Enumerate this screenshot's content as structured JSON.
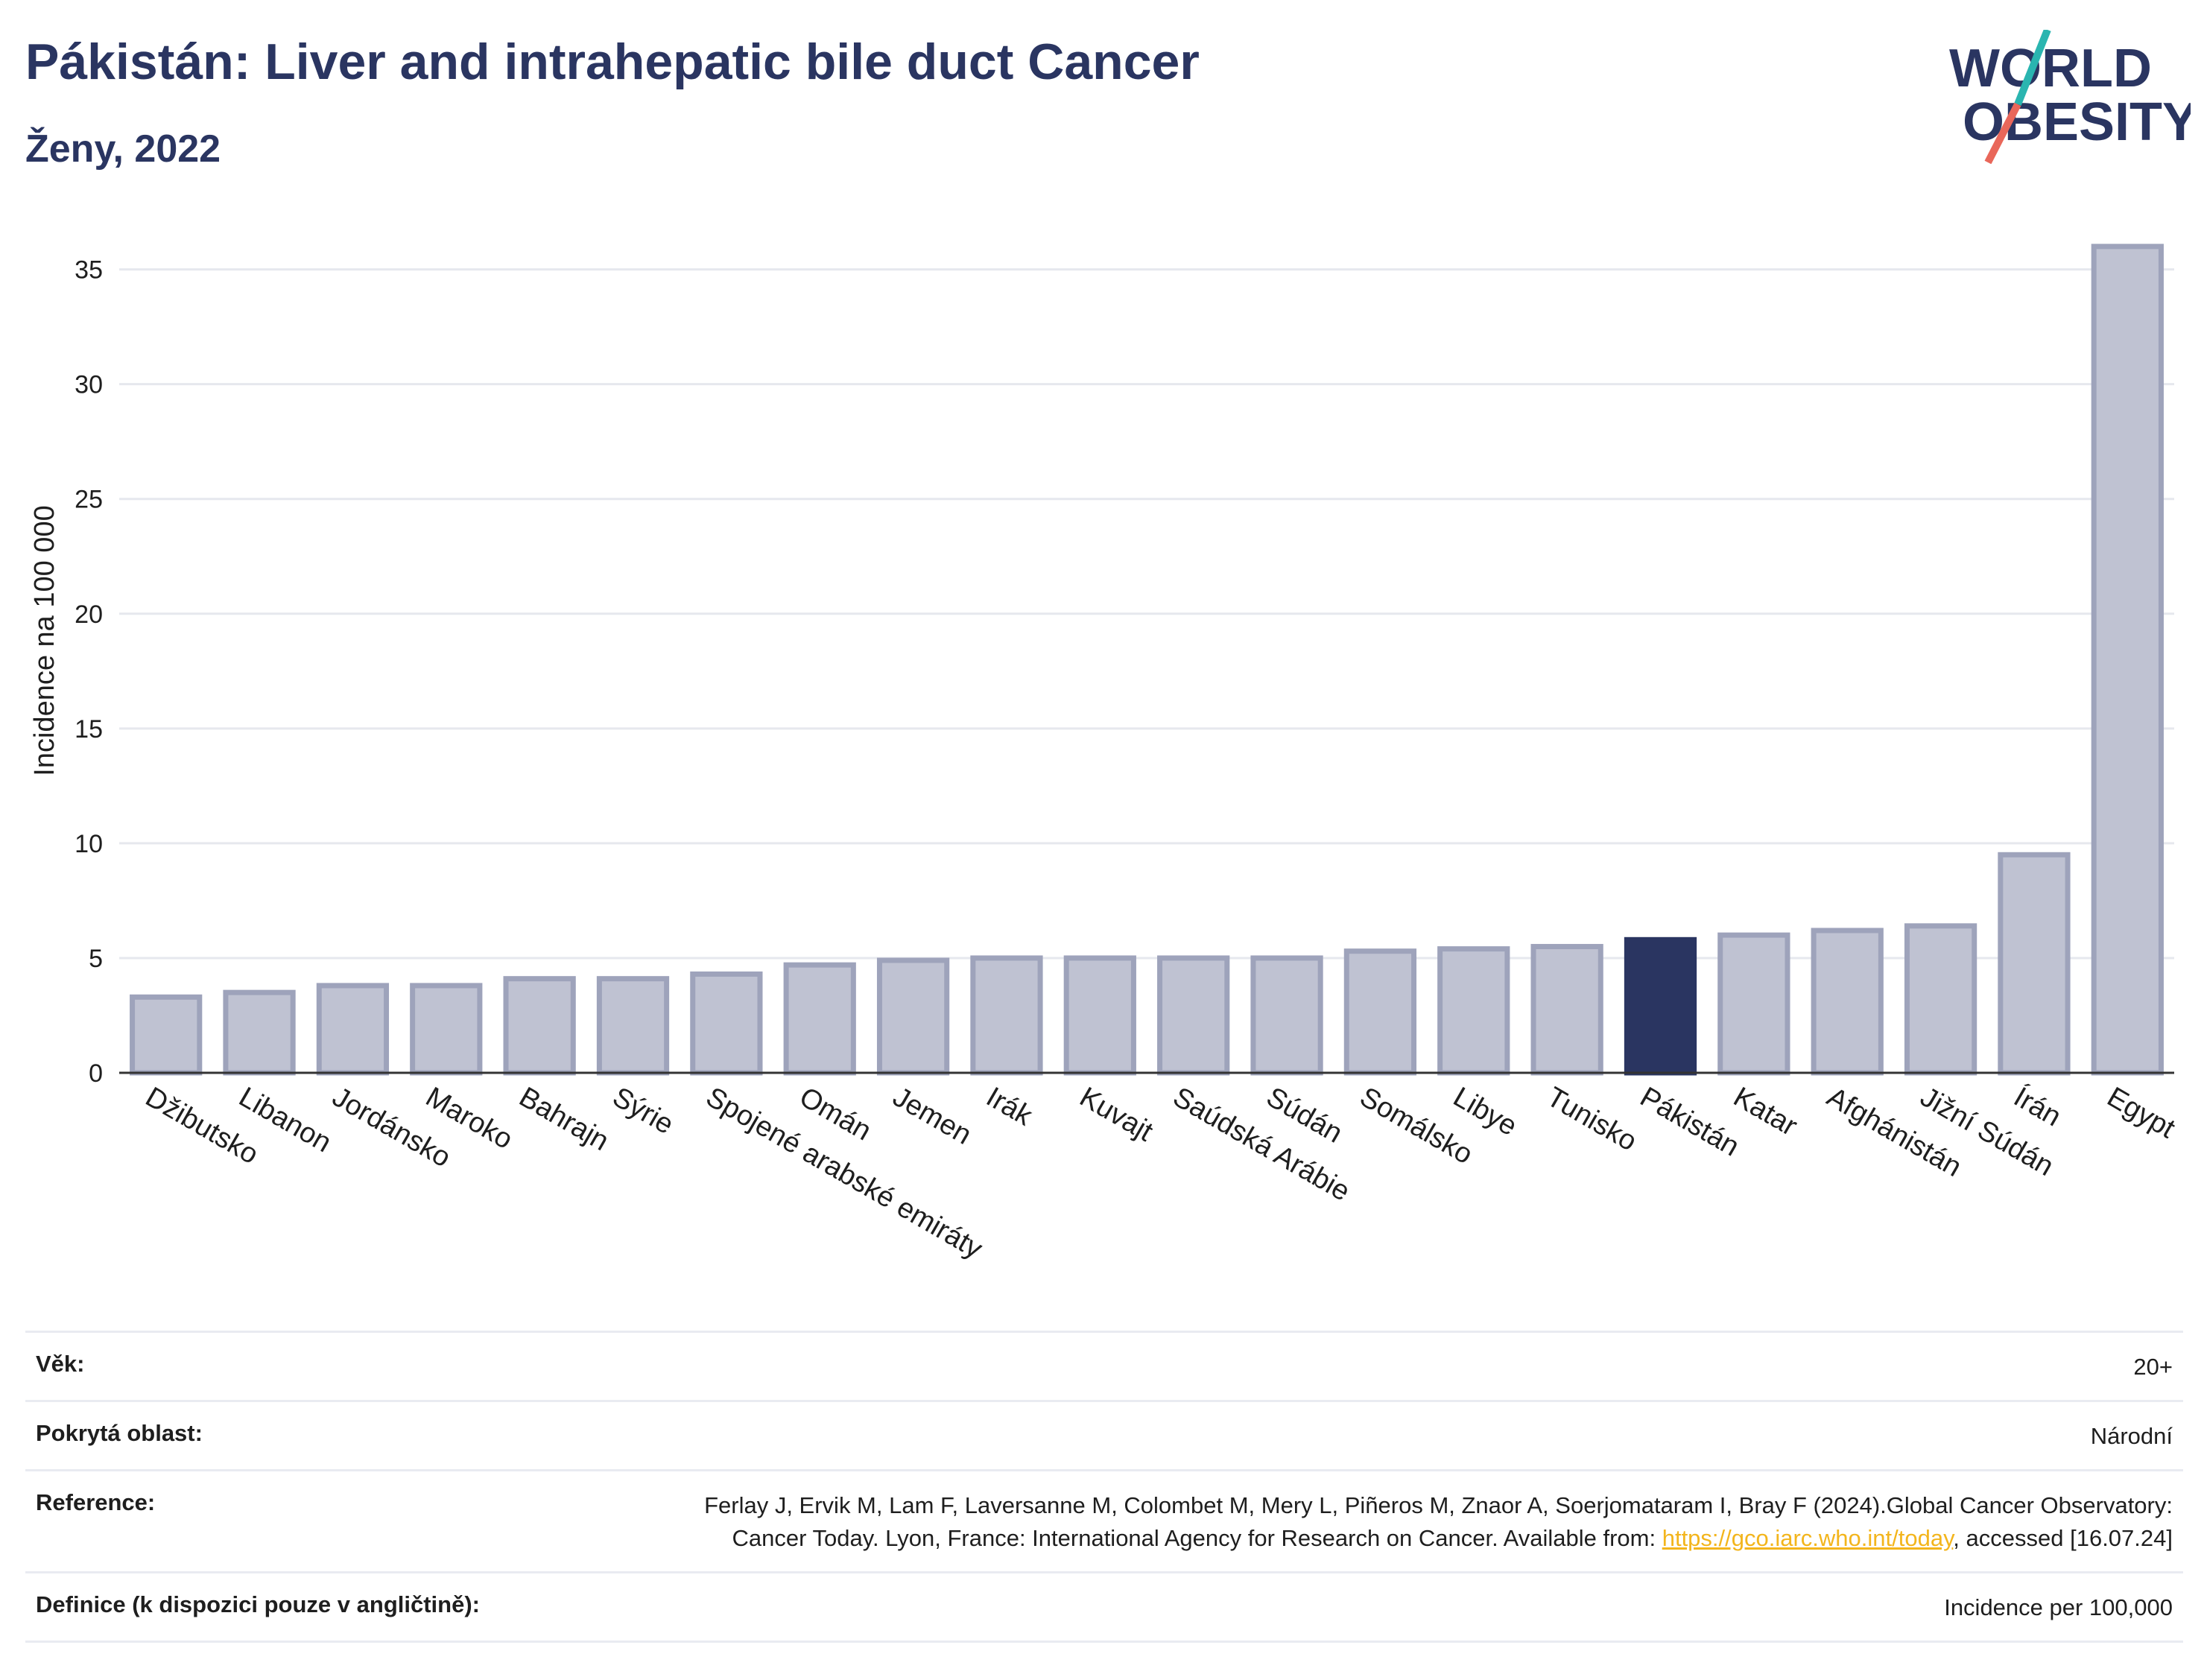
{
  "header": {
    "title": "Pákistán: Liver and intrahepatic bile duct Cancer",
    "subtitle": "Ženy, 2022"
  },
  "logo": {
    "line1": "WORLD",
    "line2": "OBESITY",
    "text_color": "#2a3561",
    "slash_colors": [
      "#2ab5b0",
      "#e9675a"
    ]
  },
  "colors": {
    "bar_default": "#bfc2d2",
    "bar_stroke": "#9ea3bb",
    "bar_highlight": "#2a3561"
  },
  "chart_data": {
    "type": "bar",
    "title": "",
    "xlabel": "",
    "ylabel": "Incidence na 100 000",
    "ylim": [
      0,
      37
    ],
    "yticks": [
      0,
      5,
      10,
      15,
      20,
      25,
      30,
      35
    ],
    "grid": true,
    "highlight": "Pákistán",
    "categories": [
      "Džibutsko",
      "Libanon",
      "Jordánsko",
      "Maroko",
      "Bahrajn",
      "Sýrie",
      "Spojené arabské emiráty",
      "Omán",
      "Jemen",
      "Irák",
      "Kuvajt",
      "Saúdská Arábie",
      "Súdán",
      "Somálsko",
      "Libye",
      "Tunisko",
      "Pákistán",
      "Katar",
      "Afghánistán",
      "Jižní Súdán",
      "Írán",
      "Egypt"
    ],
    "values": [
      3.3,
      3.5,
      3.8,
      3.8,
      4.1,
      4.1,
      4.3,
      4.7,
      4.9,
      5.0,
      5.0,
      5.0,
      5.0,
      5.3,
      5.4,
      5.5,
      5.8,
      6.0,
      6.2,
      6.4,
      9.5,
      36.0
    ]
  },
  "info": {
    "age": {
      "label": "Věk:",
      "value": "20+"
    },
    "coverage": {
      "label": "Pokrytá oblast:",
      "value": "Národní"
    },
    "reference": {
      "label": "Reference:",
      "text_before": "Ferlay J, Ervik M, Lam F, Laversanne M, Colombet M, Mery L, Piñeros M, Znaor A, Soerjomataram I, Bray F (2024).Global Cancer Observatory: Cancer Today. Lyon, France: International Agency for Research on Cancer. Available from: ",
      "link": "https://gco.iarc.who.int/today",
      "text_after": ", accessed [16.07.24]"
    },
    "definition": {
      "label": "Definice (k dispozici pouze v angličtině):",
      "value": "Incidence per 100,000"
    }
  }
}
